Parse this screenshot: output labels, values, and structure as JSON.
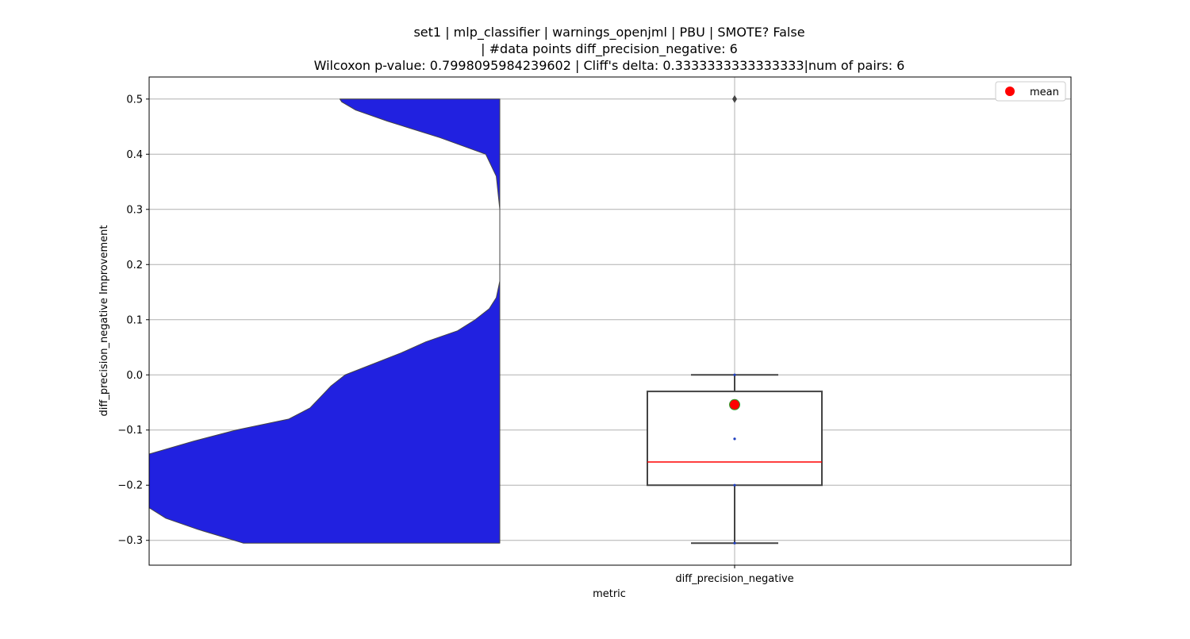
{
  "chart_data": {
    "type": "box",
    "title_lines": [
      "set1 | mlp_classifier | warnings_openjml | PBU | SMOTE? False",
      "| #data points diff_precision_negative: 6",
      "Wilcoxon p-value: 0.7998095984239602 | Cliff's delta: 0.3333333333333333|num of pairs: 6"
    ],
    "xlabel": "metric",
    "ylabel": "diff_precision_negative Improvement",
    "categories": [
      "diff_precision_negative"
    ],
    "ylim": [
      -0.345,
      0.54
    ],
    "yticks": [
      -0.3,
      -0.2,
      -0.1,
      0.0,
      0.1,
      0.2,
      0.3,
      0.4,
      0.5
    ],
    "ytick_labels": [
      "−0.3",
      "−0.2",
      "−0.1",
      "0.0",
      "0.1",
      "0.2",
      "0.3",
      "0.4",
      "0.5"
    ],
    "grid": true,
    "legend": {
      "placement": "top-right",
      "entries": [
        {
          "label": "mean",
          "marker": "circle",
          "color": "#ff0000"
        }
      ]
    },
    "violin": {
      "color": "#2121e0",
      "edge_color": "#444444",
      "half": "left",
      "y_min": -0.305,
      "y_max": 0.5,
      "density_profile": [
        [
          -0.305,
          0.73
        ],
        [
          -0.28,
          0.86
        ],
        [
          -0.26,
          0.95
        ],
        [
          -0.24,
          1.0
        ],
        [
          -0.2,
          1.0
        ],
        [
          -0.16,
          1.0
        ],
        [
          -0.144,
          1.0
        ],
        [
          -0.12,
          0.87
        ],
        [
          -0.1,
          0.75
        ],
        [
          -0.08,
          0.6
        ],
        [
          -0.06,
          0.54
        ],
        [
          -0.04,
          0.51
        ],
        [
          -0.02,
          0.48
        ],
        [
          0.0,
          0.44
        ],
        [
          0.02,
          0.36
        ],
        [
          0.04,
          0.28
        ],
        [
          0.06,
          0.21
        ],
        [
          0.08,
          0.12
        ],
        [
          0.1,
          0.07
        ],
        [
          0.12,
          0.03
        ],
        [
          0.14,
          0.01
        ],
        [
          0.17,
          0.0
        ],
        [
          0.22,
          0.0
        ],
        [
          0.3,
          0.0
        ],
        [
          0.36,
          0.01
        ],
        [
          0.4,
          0.04
        ],
        [
          0.43,
          0.17
        ],
        [
          0.46,
          0.32
        ],
        [
          0.48,
          0.41
        ],
        [
          0.495,
          0.45
        ],
        [
          0.5,
          0.455
        ]
      ]
    },
    "box": {
      "q1": -0.2,
      "median": -0.158,
      "q3": -0.03,
      "whisker_low": -0.305,
      "whisker_high": 0.0,
      "mean": -0.054,
      "outliers": [
        0.5
      ],
      "points": [
        -0.305,
        -0.2,
        -0.116,
        0.0
      ],
      "box_edge_color": "#444444",
      "median_color": "#ff0000",
      "mean_color": "#ff0000",
      "mean_edge_color": "#2a9d2a",
      "point_color": "#1f3fbf"
    }
  }
}
